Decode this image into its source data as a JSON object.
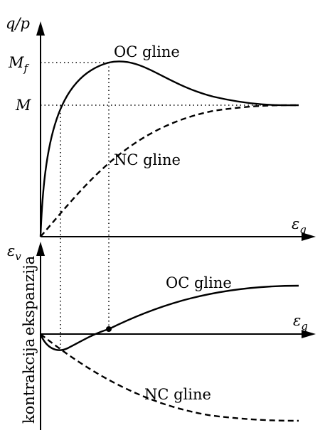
{
  "top": {
    "y_axis_label": {
      "base": "q/p"
    },
    "x_axis_label": {
      "base": "ε",
      "sub": "q"
    },
    "level_peak": {
      "base": "M",
      "sub": "f"
    },
    "level_critical": {
      "base": "M"
    },
    "oc_label": "OC gline",
    "nc_label": "NC gline"
  },
  "bottom": {
    "y_axis_label": {
      "base": "ε",
      "sub": "v"
    },
    "x_axis_label": {
      "base": "ε",
      "sub": "q"
    },
    "upper_side": "ekspanzija",
    "lower_side": "kontrakcija",
    "oc_label": "OC gline",
    "nc_label": "NC gline"
  }
}
